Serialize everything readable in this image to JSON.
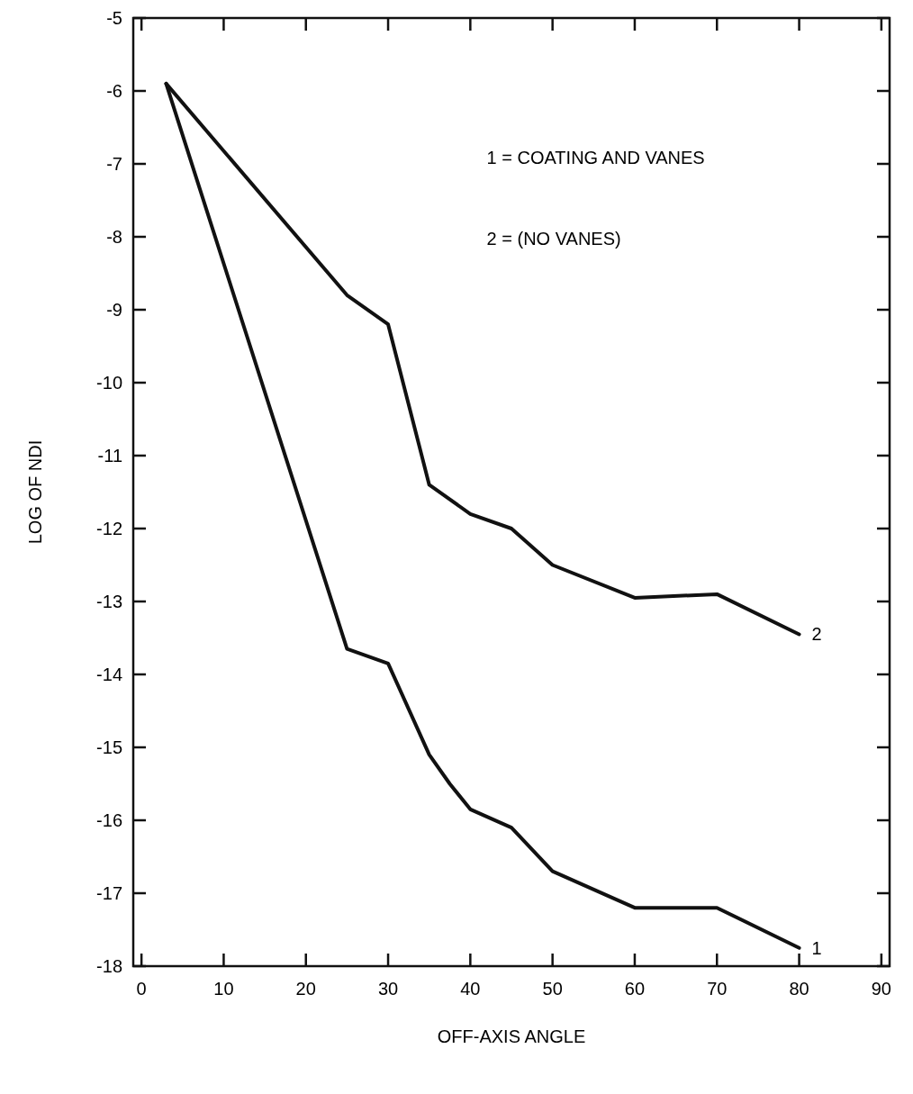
{
  "chart_data": {
    "type": "line",
    "xlabel": "OFF-AXIS ANGLE",
    "ylabel": "LOG OF NDI",
    "xlim": [
      -1,
      91
    ],
    "ylim": [
      -18,
      -5
    ],
    "xticks": [
      0,
      10,
      20,
      30,
      40,
      50,
      60,
      70,
      80,
      90
    ],
    "yticks": [
      -18,
      -17,
      -16,
      -15,
      -14,
      -13,
      -12,
      -11,
      -10,
      -9,
      -8,
      -7,
      -6,
      -5
    ],
    "grid": false,
    "marker": "none",
    "line_style": "solid",
    "series": [
      {
        "name": "1",
        "color": "#111111",
        "x": [
          3,
          25,
          30,
          35,
          37.5,
          40,
          45,
          50,
          60,
          70,
          80
        ],
        "values": [
          -5.9,
          -13.65,
          -13.85,
          -15.1,
          -15.5,
          -15.85,
          -16.1,
          -16.7,
          -17.2,
          -17.2,
          -17.75
        ]
      },
      {
        "name": "2",
        "color": "#111111",
        "x": [
          3,
          25,
          30,
          35,
          40,
          45,
          50,
          60,
          70,
          80
        ],
        "values": [
          -5.9,
          -8.8,
          -9.2,
          -11.4,
          -11.8,
          -12.0,
          -12.5,
          -12.95,
          -12.9,
          -13.45
        ]
      }
    ],
    "annotations": [
      "1 = COATING AND VANES",
      "2 = (NO VANES)"
    ]
  }
}
